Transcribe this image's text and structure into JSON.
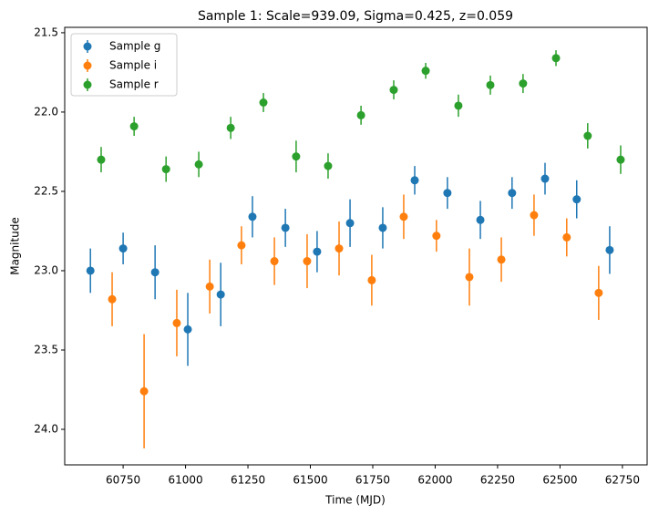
{
  "chart_data": {
    "type": "errorbar",
    "title": "Sample 1: Scale=939.09, Sigma=0.425, z=0.059",
    "x_label": "Time (MJD)",
    "y_label": "Magnitude",
    "xlim": [
      60516,
      62849
    ],
    "ylim": [
      21.466,
      24.224
    ],
    "y_inverted": true,
    "xticks": [
      60750,
      61000,
      61250,
      61500,
      61750,
      62000,
      62250,
      62500,
      62750
    ],
    "yticks": [
      21.5,
      {
        "value": 22,
        "label": "22.0"
      },
      22.5,
      {
        "value": 23,
        "label": "23.0"
      },
      23.5,
      {
        "value": 24,
        "label": "24.0"
      }
    ],
    "legend": "upper left",
    "series": [
      {
        "name": "Sample g",
        "color": "#1f77b4",
        "x": [
          60619,
          60750,
          60878,
          61009,
          61141,
          61268,
          61400,
          61527,
          61659,
          61790,
          61918,
          62049,
          62181,
          62308,
          62440,
          62567,
          62699
        ],
        "values": [
          23.0,
          22.86,
          23.01,
          23.37,
          23.15,
          22.66,
          22.73,
          22.88,
          22.7,
          22.73,
          22.43,
          22.51,
          22.68,
          22.51,
          22.42,
          22.55,
          22.87
        ],
        "errors": [
          0.14,
          0.1,
          0.17,
          0.23,
          0.2,
          0.13,
          0.12,
          0.13,
          0.15,
          0.13,
          0.09,
          0.1,
          0.12,
          0.1,
          0.1,
          0.12,
          0.15
        ]
      },
      {
        "name": "Sample i",
        "color": "#ff7f0e",
        "x": [
          60706,
          60834,
          60965,
          61097,
          61224,
          61356,
          61487,
          61615,
          61746,
          61874,
          62005,
          62137,
          62265,
          62396,
          62527,
          62655
        ],
        "values": [
          23.18,
          23.76,
          23.33,
          23.1,
          22.84,
          22.94,
          22.94,
          22.86,
          23.06,
          22.66,
          22.78,
          23.04,
          22.93,
          22.65,
          22.79,
          23.14
        ],
        "errors": [
          0.17,
          0.36,
          0.21,
          0.17,
          0.12,
          0.15,
          0.17,
          0.17,
          0.16,
          0.14,
          0.1,
          0.18,
          0.14,
          0.13,
          0.12,
          0.17
        ]
      },
      {
        "name": "Sample r",
        "color": "#2ca02c",
        "x": [
          60662,
          60794,
          60922,
          61053,
          61181,
          61312,
          61443,
          61571,
          61703,
          61834,
          61962,
          62093,
          62221,
          62352,
          62484,
          62611,
          62743
        ],
        "values": [
          22.3,
          22.09,
          22.36,
          22.33,
          22.1,
          21.94,
          22.28,
          22.34,
          22.02,
          21.86,
          21.74,
          21.96,
          21.83,
          21.82,
          21.66,
          22.15,
          22.3
        ],
        "errors": [
          0.08,
          0.06,
          0.08,
          0.08,
          0.07,
          0.06,
          0.1,
          0.08,
          0.06,
          0.06,
          0.05,
          0.07,
          0.06,
          0.06,
          0.05,
          0.08,
          0.09
        ]
      }
    ]
  }
}
